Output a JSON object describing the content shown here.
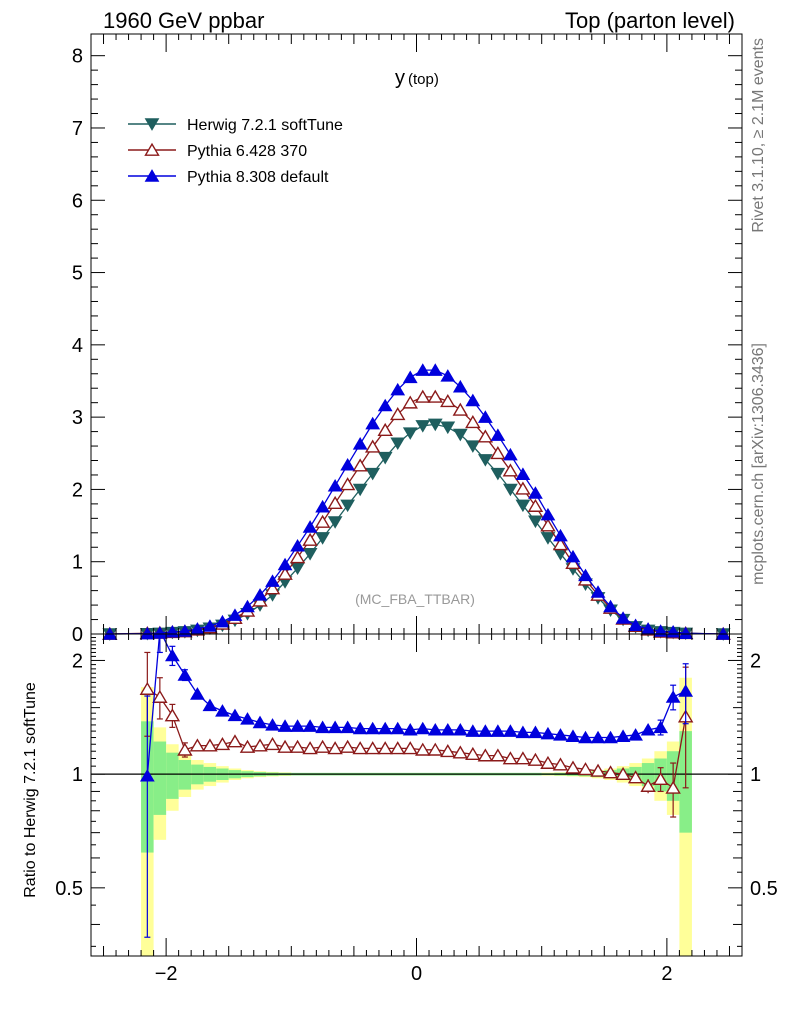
{
  "header": {
    "left": "1960 GeV ppbar",
    "right": "Top (parton level)"
  },
  "side": {
    "rivet": "Rivet 3.1.10, ≥ 2.1M events",
    "mcplots": "mcplots.cern.ch [arXiv:1306.3436]"
  },
  "chart_data": [
    {
      "type": "line",
      "title": "y (top)",
      "title_main": "y",
      "title_sub": "(top)",
      "watermark": "(MC_FBA_TTBAR)",
      "xlim": [
        -2.6,
        2.6
      ],
      "ylim": [
        0,
        8.3
      ],
      "y_ticks": [
        0,
        1,
        2,
        3,
        4,
        5,
        6,
        7,
        8
      ],
      "y_tick_labels": [
        "0",
        "1",
        "2",
        "3",
        "4",
        "5",
        "6",
        "7",
        "8"
      ],
      "legend": "top-left",
      "x": [
        -2.45,
        -2.15,
        -2.05,
        -1.95,
        -1.85,
        -1.75,
        -1.65,
        -1.55,
        -1.45,
        -1.35,
        -1.25,
        -1.15,
        -1.05,
        -0.95,
        -0.85,
        -0.75,
        -0.65,
        -0.55,
        -0.45,
        -0.35,
        -0.25,
        -0.15,
        -0.05,
        0.05,
        0.15,
        0.25,
        0.35,
        0.45,
        0.55,
        0.65,
        0.75,
        0.85,
        0.95,
        1.05,
        1.15,
        1.25,
        1.35,
        1.45,
        1.55,
        1.65,
        1.75,
        1.85,
        1.95,
        2.05,
        2.15,
        2.45
      ],
      "series": [
        {
          "name": "Herwig 7.2.1 softTune",
          "color": "#1f5f5f",
          "marker": "triangle-down-filled",
          "values": [
            0.0,
            0.005,
            0.01,
            0.02,
            0.03,
            0.05,
            0.08,
            0.12,
            0.19,
            0.28,
            0.4,
            0.54,
            0.72,
            0.91,
            1.11,
            1.33,
            1.55,
            1.78,
            2.0,
            2.22,
            2.44,
            2.64,
            2.78,
            2.88,
            2.9,
            2.86,
            2.76,
            2.6,
            2.41,
            2.22,
            2.0,
            1.78,
            1.56,
            1.33,
            1.11,
            0.9,
            0.69,
            0.5,
            0.33,
            0.2,
            0.1,
            0.05,
            0.03,
            0.02,
            0.01,
            0.0
          ]
        },
        {
          "name": "Pythia 6.428 370",
          "color": "#8b1a1a",
          "marker": "triangle-up-open",
          "values": [
            0.0,
            0.01,
            0.015,
            0.025,
            0.035,
            0.06,
            0.09,
            0.14,
            0.22,
            0.32,
            0.46,
            0.63,
            0.83,
            1.06,
            1.3,
            1.55,
            1.81,
            2.07,
            2.33,
            2.59,
            2.82,
            3.04,
            3.2,
            3.28,
            3.28,
            3.22,
            3.1,
            2.93,
            2.73,
            2.5,
            2.26,
            2.01,
            1.77,
            1.5,
            1.24,
            0.98,
            0.75,
            0.54,
            0.36,
            0.21,
            0.11,
            0.06,
            0.03,
            0.02,
            0.01,
            0.0
          ]
        },
        {
          "name": "Pythia 8.308 default",
          "color": "#0000dd",
          "marker": "triangle-up-filled",
          "values": [
            0.0,
            0.005,
            0.015,
            0.03,
            0.04,
            0.07,
            0.11,
            0.17,
            0.26,
            0.38,
            0.54,
            0.73,
            0.96,
            1.22,
            1.48,
            1.76,
            2.05,
            2.34,
            2.63,
            2.91,
            3.16,
            3.38,
            3.55,
            3.65,
            3.65,
            3.57,
            3.42,
            3.23,
            3.0,
            2.75,
            2.48,
            2.21,
            1.95,
            1.65,
            1.36,
            1.07,
            0.81,
            0.58,
            0.38,
            0.22,
            0.12,
            0.07,
            0.04,
            0.03,
            0.01,
            0.0
          ]
        }
      ]
    },
    {
      "type": "line",
      "ylabel": "Ratio to Herwig 7.2.1 softTune",
      "xlim": [
        -2.6,
        2.6
      ],
      "ylim": [
        0.33,
        2.35
      ],
      "y_scale": "log",
      "x_ticks": [
        -2,
        0,
        2
      ],
      "x_tick_labels": [
        "−2",
        "0",
        "2"
      ],
      "y_ticks": [
        0.5,
        1,
        2
      ],
      "y_tick_labels": [
        "0.5",
        "1",
        "2"
      ],
      "reference_line": 1,
      "band_bins": [
        -2.2,
        -2.1,
        -2.0,
        -1.9,
        -1.8,
        -1.7,
        -1.6,
        -1.5,
        -1.4,
        -1.3,
        -1.2,
        -1.1,
        -1.0,
        1.0,
        1.1,
        1.2,
        1.3,
        1.4,
        1.5,
        1.6,
        1.7,
        1.8,
        1.9,
        2.0,
        2.1,
        2.2
      ],
      "band_green_half": [
        0.38,
        0.22,
        0.14,
        0.09,
        0.06,
        0.045,
        0.035,
        0.025,
        0.018,
        0.013,
        0.01,
        0.008,
        0.006,
        0.006,
        0.008,
        0.01,
        0.013,
        0.018,
        0.025,
        0.035,
        0.045,
        0.07,
        0.1,
        0.15,
        0.3
      ],
      "band_yellow_half": [
        0.7,
        0.33,
        0.2,
        0.13,
        0.09,
        0.07,
        0.05,
        0.035,
        0.025,
        0.018,
        0.014,
        0.011,
        0.009,
        0.009,
        0.011,
        0.014,
        0.018,
        0.025,
        0.035,
        0.05,
        0.07,
        0.1,
        0.15,
        0.22,
        0.8
      ],
      "x": [
        -2.15,
        -2.05,
        -1.95,
        -1.85,
        -1.75,
        -1.65,
        -1.55,
        -1.45,
        -1.35,
        -1.25,
        -1.15,
        -1.05,
        -0.95,
        -0.85,
        -0.75,
        -0.65,
        -0.55,
        -0.45,
        -0.35,
        -0.25,
        -0.15,
        -0.05,
        0.05,
        0.15,
        0.25,
        0.35,
        0.45,
        0.55,
        0.65,
        0.75,
        0.85,
        0.95,
        1.05,
        1.15,
        1.25,
        1.35,
        1.45,
        1.55,
        1.65,
        1.75,
        1.85,
        1.95,
        2.05,
        2.15
      ],
      "series": [
        {
          "name": "Pythia 6.428 370",
          "color": "#8b1a1a",
          "marker": "triangle-up-open",
          "values": [
            1.68,
            1.6,
            1.43,
            1.16,
            1.19,
            1.19,
            1.2,
            1.22,
            1.18,
            1.19,
            1.2,
            1.18,
            1.18,
            1.17,
            1.18,
            1.17,
            1.18,
            1.17,
            1.17,
            1.17,
            1.17,
            1.17,
            1.16,
            1.16,
            1.15,
            1.14,
            1.13,
            1.12,
            1.12,
            1.1,
            1.1,
            1.09,
            1.07,
            1.06,
            1.04,
            1.03,
            1.02,
            1.01,
            1.0,
            0.98,
            0.93,
            0.97,
            0.92,
            1.42
          ],
          "errors": [
            0.42,
            0.2,
            0.1,
            0.05,
            0.03,
            0.02,
            0.02,
            0.015,
            0.012,
            0.01,
            0.01,
            0.008,
            0.007,
            0.007,
            0.006,
            0.006,
            0.006,
            0.005,
            0.005,
            0.005,
            0.005,
            0.005,
            0.005,
            0.005,
            0.005,
            0.005,
            0.005,
            0.006,
            0.006,
            0.006,
            0.007,
            0.007,
            0.008,
            0.01,
            0.01,
            0.012,
            0.015,
            0.02,
            0.02,
            0.03,
            0.04,
            0.07,
            0.15,
            0.5
          ]
        },
        {
          "name": "Pythia 8.308 default",
          "color": "#0000dd",
          "marker": "triangle-up-filled",
          "values": [
            0.99,
            2.4,
            2.06,
            1.83,
            1.63,
            1.52,
            1.47,
            1.43,
            1.4,
            1.37,
            1.35,
            1.34,
            1.34,
            1.34,
            1.33,
            1.33,
            1.33,
            1.32,
            1.32,
            1.32,
            1.32,
            1.31,
            1.32,
            1.31,
            1.31,
            1.31,
            1.3,
            1.3,
            1.3,
            1.3,
            1.29,
            1.29,
            1.28,
            1.27,
            1.26,
            1.25,
            1.25,
            1.25,
            1.26,
            1.27,
            1.31,
            1.33,
            1.6,
            1.66
          ],
          "errors": [
            0.62,
            0.3,
            0.12,
            0.06,
            0.04,
            0.03,
            0.02,
            0.015,
            0.012,
            0.01,
            0.01,
            0.008,
            0.007,
            0.007,
            0.006,
            0.006,
            0.006,
            0.005,
            0.005,
            0.005,
            0.005,
            0.005,
            0.005,
            0.005,
            0.005,
            0.005,
            0.005,
            0.006,
            0.006,
            0.006,
            0.007,
            0.007,
            0.008,
            0.01,
            0.01,
            0.012,
            0.015,
            0.02,
            0.02,
            0.03,
            0.04,
            0.06,
            0.12,
            0.3
          ]
        }
      ]
    }
  ]
}
